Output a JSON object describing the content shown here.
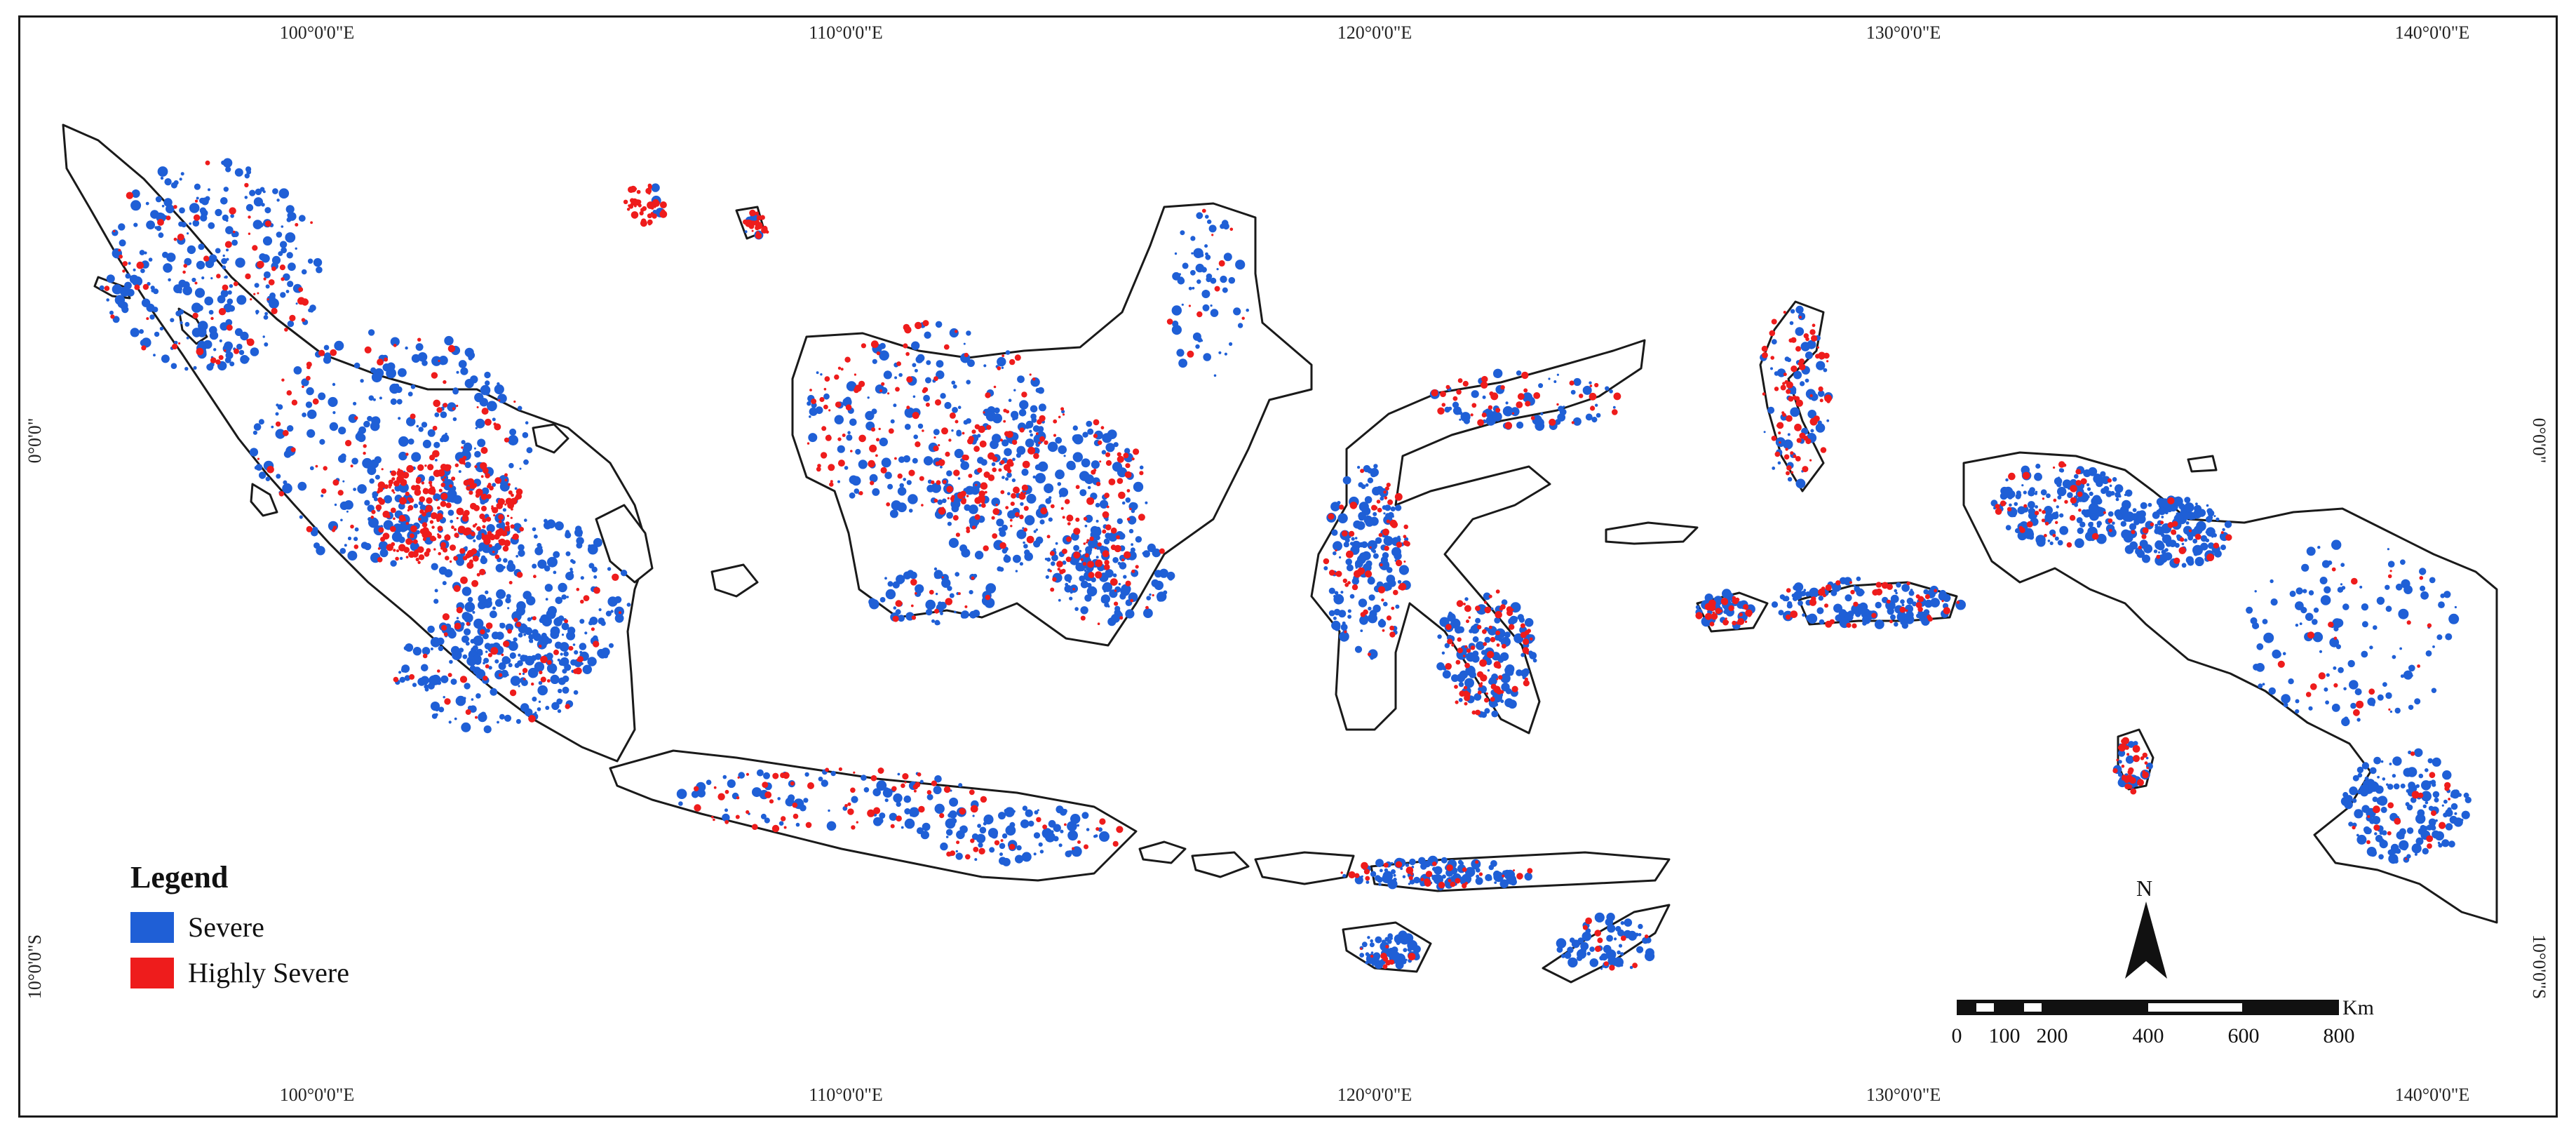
{
  "graticule": {
    "top": [
      "100°0'0\"E",
      "110°0'0\"E",
      "120°0'0\"E",
      "130°0'0\"E",
      "140°0'0\"E"
    ],
    "bottom": [
      "100°0'0\"E",
      "110°0'0\"E",
      "120°0'0\"E",
      "130°0'0\"E",
      "140°0'0\"E"
    ],
    "left": [
      "0°0'0\"",
      "10°0'0\"S"
    ],
    "right": [
      "0°0'0\"",
      "10°0'0\"S"
    ]
  },
  "legend": {
    "title": "Legend",
    "items": [
      {
        "label": "Severe",
        "color": "#1f5fd6"
      },
      {
        "label": "Highly Severe",
        "color": "#ee1c1c"
      }
    ]
  },
  "north_arrow": {
    "label": "N"
  },
  "scale_bar": {
    "unit": "Km",
    "labels": [
      "0",
      "100",
      "200",
      "400",
      "600",
      "800"
    ]
  },
  "colors": {
    "outline": "#1a1a1a",
    "severe": "#1f5fd6",
    "highly_severe": "#ee1c1c"
  }
}
